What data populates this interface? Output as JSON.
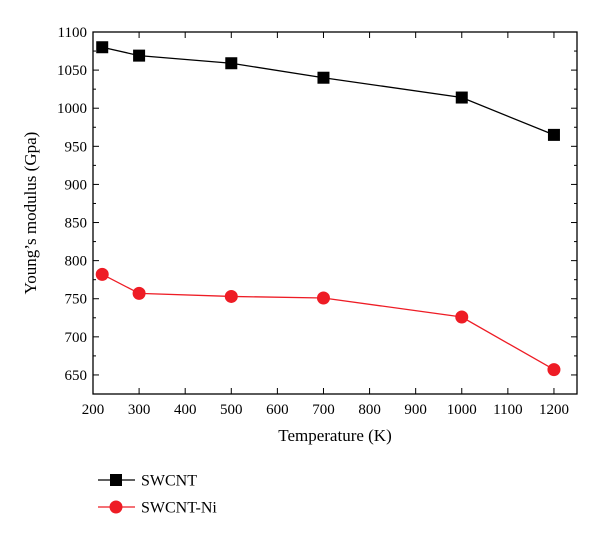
{
  "chart_data": {
    "type": "line",
    "xlabel": "Temperature (K)",
    "ylabel": "Young’s modulus (Gpa)",
    "xlim": [
      200,
      1250
    ],
    "ylim": [
      625,
      1100
    ],
    "x_ticks": [
      200,
      300,
      400,
      500,
      600,
      700,
      800,
      900,
      1000,
      1100,
      1200
    ],
    "y_ticks": [
      650,
      700,
      750,
      800,
      850,
      900,
      950,
      1000,
      1050,
      1100
    ],
    "grid": false,
    "legend_position": "bottom-left, below plot",
    "series": [
      {
        "name": "SWCNT",
        "marker": "square",
        "color": "#000000",
        "x": [
          220,
          300,
          500,
          700,
          1000,
          1200
        ],
        "y": [
          1080,
          1069,
          1059,
          1040,
          1014,
          965
        ]
      },
      {
        "name": "SWCNT-Ni",
        "marker": "circle",
        "color": "#ee1c25",
        "x": [
          220,
          300,
          500,
          700,
          1000,
          1200
        ],
        "y": [
          782,
          757,
          753,
          751,
          726,
          657
        ]
      }
    ]
  }
}
